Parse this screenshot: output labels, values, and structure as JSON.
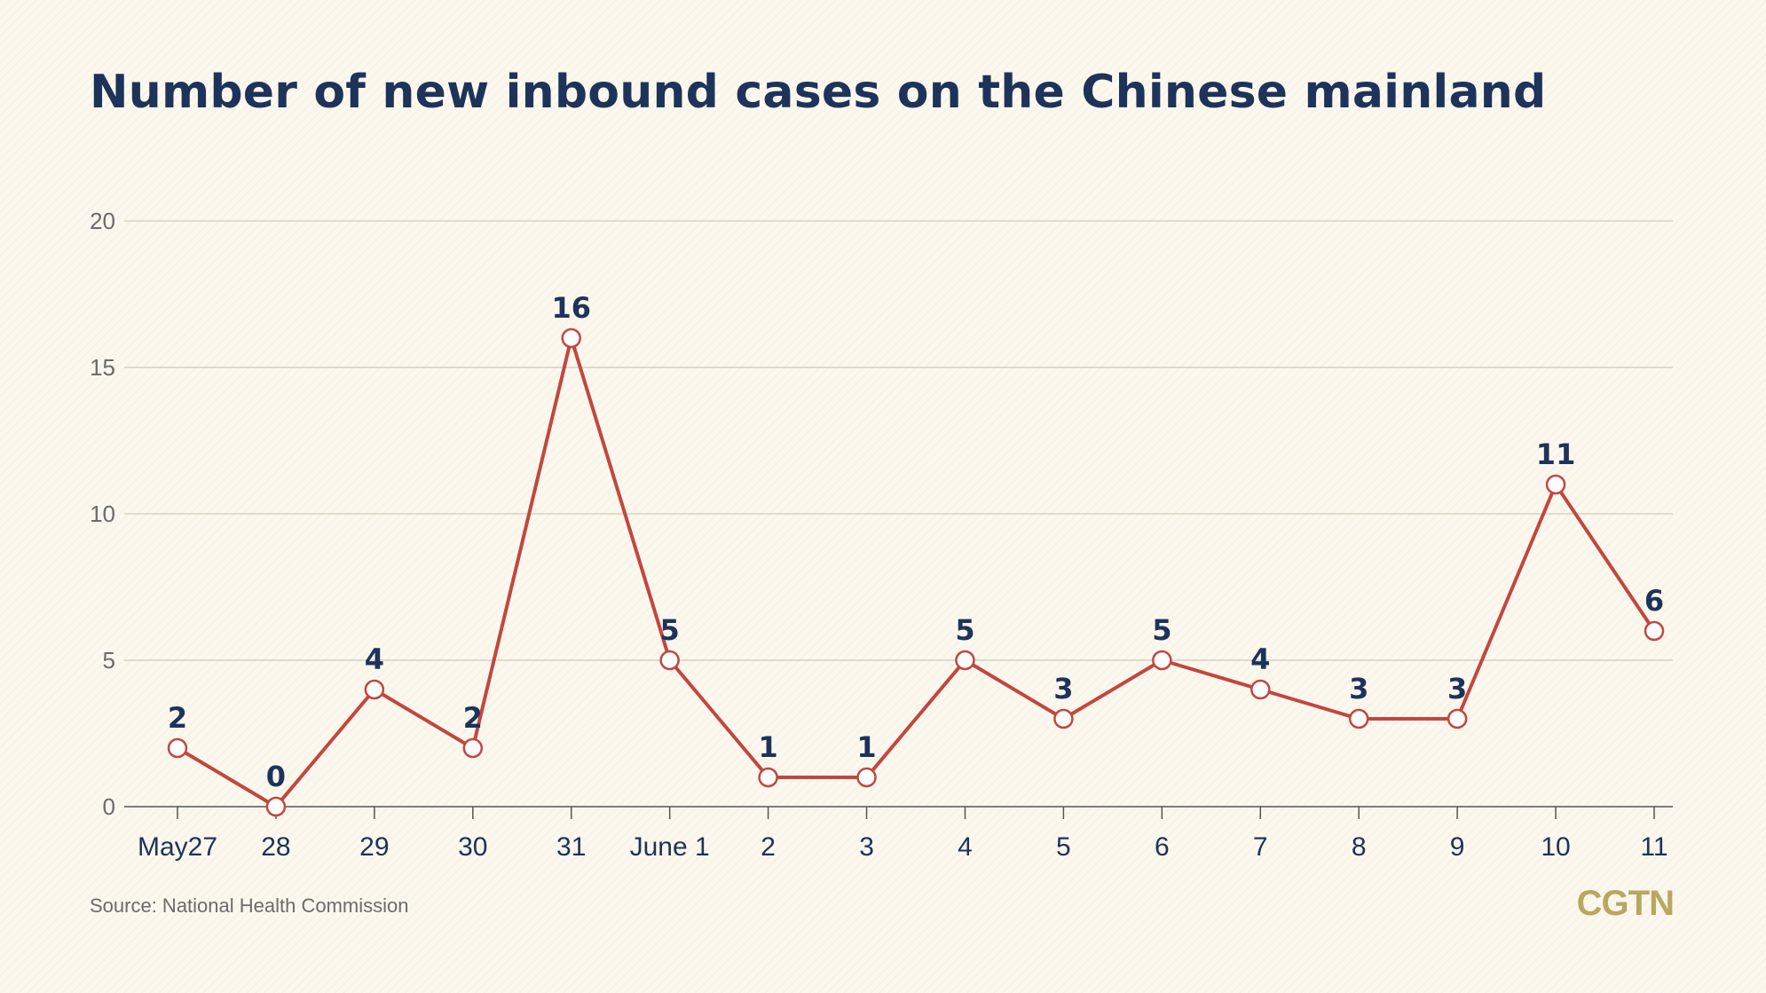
{
  "title": "Number of new inbound cases on the Chinese mainland",
  "source": "Source: National Health Commission",
  "logo": "CGTN",
  "colors": {
    "line": "#c2473f",
    "marker_fill": "#ffffff",
    "text": "#1d3359",
    "grid": "#cfcbb8",
    "logo": "#b8a75e"
  },
  "chart_data": {
    "type": "line",
    "title": "Number of new inbound cases on the Chinese mainland",
    "xlabel": "",
    "ylabel": "",
    "categories": [
      "May27",
      "28",
      "29",
      "30",
      "31",
      "June 1",
      "2",
      "3",
      "4",
      "5",
      "6",
      "7",
      "8",
      "9",
      "10",
      "11"
    ],
    "series": [
      {
        "values": [
          2,
          0,
          4,
          2,
          16,
          5,
          1,
          1,
          5,
          3,
          5,
          4,
          3,
          3,
          11,
          6
        ]
      }
    ],
    "ylim": [
      0,
      20
    ],
    "yticks": [
      0,
      5,
      10,
      15,
      20
    ],
    "grid": true,
    "legend": "none"
  }
}
